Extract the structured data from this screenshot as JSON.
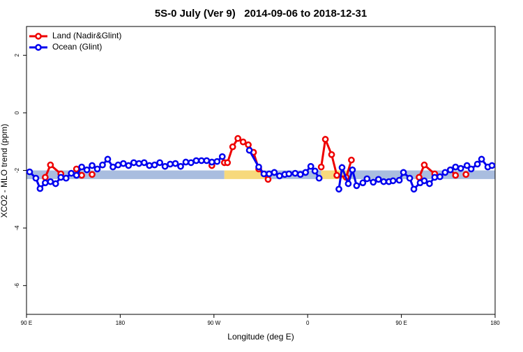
{
  "chart_data": {
    "type": "line",
    "title": "5S-0 July (Ver 9)   2014-09-06 to 2018-12-31",
    "x_label": "Longitude (deg E)",
    "y_label": "XCO2 - MLO trend (ppm)",
    "xlim": [
      90,
      540
    ],
    "ylim": [
      -7,
      3
    ],
    "xticks": [
      {
        "value": 90,
        "label": "90 E"
      },
      {
        "value": 180,
        "label": "180"
      },
      {
        "value": 270,
        "label": "90 W"
      },
      {
        "value": 360,
        "label": "0"
      },
      {
        "value": 450,
        "label": "90 E"
      },
      {
        "value": 540,
        "label": "180"
      }
    ],
    "yticks": [
      -6,
      -4,
      -2,
      0,
      2
    ],
    "legend": "topleft",
    "band_y": [
      -2.3,
      -2.0
    ],
    "bands": [
      {
        "x": [
          90,
          280
        ],
        "color": "#a9bddf"
      },
      {
        "x": [
          280,
          319
        ],
        "color": "#f7d97c"
      },
      {
        "x": [
          319,
          373
        ],
        "color": "#a9bddf"
      },
      {
        "x": [
          373,
          399
        ],
        "color": "#f7d97c"
      },
      {
        "x": [
          399,
          540
        ],
        "color": "#a9bddf"
      }
    ],
    "series": [
      {
        "name": "Land (Nadir&Glint)",
        "color": "#ee0000",
        "x": [
          108,
          113,
          123,
          null,
          138,
          143,
          null,
          153,
          null,
          268,
          null,
          280,
          283,
          288,
          293,
          298,
          303,
          308,
          313,
          322,
          null,
          373,
          377,
          383,
          388,
          397,
          402,
          null,
          467,
          472,
          482,
          null,
          497,
          502,
          null,
          512
        ],
        "values": [
          -2.24,
          -1.81,
          -2.12,
          null,
          -1.95,
          -2.17,
          null,
          -2.14,
          null,
          -1.83,
          null,
          -1.73,
          -1.73,
          -1.18,
          -0.89,
          -1.01,
          -1.11,
          -1.37,
          -1.95,
          -2.31,
          null,
          -1.88,
          -0.92,
          -1.45,
          -2.17,
          -2.24,
          -1.64,
          null,
          -2.24,
          -1.81,
          -2.12,
          null,
          -1.98,
          -2.17,
          null,
          -2.14
        ]
      },
      {
        "name": "Ocean (Glint)",
        "color": "#0000ee",
        "x": [
          93,
          99,
          103,
          108,
          113,
          118,
          123,
          128,
          133,
          138,
          143,
          148,
          153,
          158,
          163,
          168,
          173,
          178,
          183,
          188,
          193,
          198,
          203,
          208,
          213,
          218,
          223,
          228,
          233,
          238,
          243,
          248,
          253,
          258,
          263,
          268,
          273,
          278,
          null,
          304,
          313,
          318,
          323,
          328,
          333,
          338,
          342,
          348,
          353,
          358,
          363,
          367,
          371,
          null,
          390,
          393,
          399,
          403,
          407,
          413,
          417,
          423,
          428,
          433,
          438,
          442,
          448,
          452,
          458,
          462,
          468,
          472,
          477,
          482,
          487,
          492,
          497,
          502,
          507,
          513,
          517,
          523,
          527,
          533,
          537
        ],
        "values": [
          -2.05,
          -2.27,
          -2.63,
          -2.43,
          -2.39,
          -2.46,
          -2.24,
          -2.27,
          -2.1,
          -2.17,
          -1.88,
          -1.98,
          -1.83,
          -1.95,
          -1.81,
          -1.61,
          -1.88,
          -1.81,
          -1.76,
          -1.83,
          -1.73,
          -1.76,
          -1.73,
          -1.83,
          -1.81,
          -1.73,
          -1.86,
          -1.78,
          -1.76,
          -1.86,
          -1.71,
          -1.73,
          -1.66,
          -1.66,
          -1.66,
          -1.71,
          -1.69,
          -1.52,
          null,
          -1.3,
          -1.88,
          -2.12,
          -2.12,
          -2.07,
          -2.19,
          -2.14,
          -2.12,
          -2.1,
          -2.14,
          -2.07,
          -1.86,
          -2.02,
          -2.27,
          null,
          -2.65,
          -1.9,
          -2.46,
          -1.98,
          -2.53,
          -2.43,
          -2.29,
          -2.41,
          -2.31,
          -2.39,
          -2.39,
          -2.36,
          -2.34,
          -2.07,
          -2.27,
          -2.65,
          -2.43,
          -2.36,
          -2.46,
          -2.24,
          -2.22,
          -2.07,
          -1.98,
          -1.88,
          -1.93,
          -1.83,
          -1.95,
          -1.78,
          -1.61,
          -1.88,
          -1.83
        ]
      }
    ]
  }
}
